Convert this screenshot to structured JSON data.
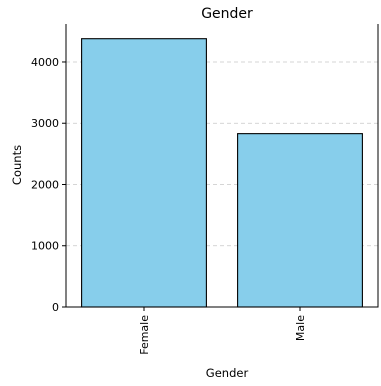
{
  "chart_data": {
    "type": "bar",
    "title": "Gender",
    "xlabel": "Gender",
    "ylabel": "Counts",
    "categories": [
      "Female",
      "Male"
    ],
    "values": [
      4380,
      2830
    ],
    "ylim": [
      0,
      4620
    ],
    "yticks": [
      0,
      1000,
      2000,
      3000,
      4000
    ],
    "grid": "y-dashed",
    "bar_color": "#87ceeb",
    "edge_color": "#000000",
    "x_tick_rotation": 90
  }
}
